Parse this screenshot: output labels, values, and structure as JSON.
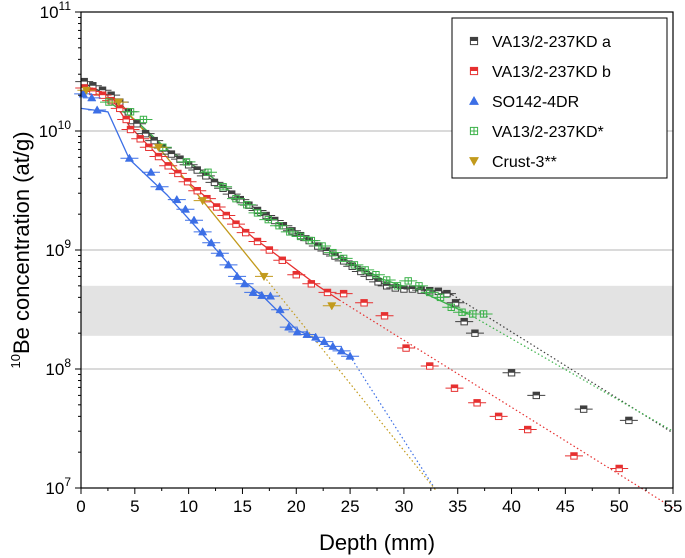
{
  "chart_data": {
    "type": "scatter",
    "xlabel": "Depth (mm)",
    "ylabel_sup": "10",
    "ylabel_rest": "Be concentration (at/g)",
    "xlim": [
      0,
      55
    ],
    "ylim_log10": [
      7,
      11
    ],
    "y_scale": "log",
    "x_ticks": [
      0,
      5,
      10,
      15,
      20,
      25,
      30,
      35,
      40,
      45,
      50,
      55
    ],
    "y_tick_labels": [
      {
        "base": "10",
        "exp": "11"
      },
      {
        "base": "10",
        "exp": "10"
      },
      {
        "base": "10",
        "exp": "9"
      },
      {
        "base": "10",
        "exp": "8"
      },
      {
        "base": "10",
        "exp": "7"
      }
    ],
    "gridlines": [
      10000000000.0,
      1000000000.0,
      100000000.0
    ],
    "shaded_band": [
      190000000.0,
      500000000.0
    ],
    "legend_position": "top-right",
    "series": [
      {
        "name": "VA13/2-237KD a",
        "marker": "half-square",
        "color": "#404040",
        "points": [
          [
            0.3,
            26000000000.0
          ],
          [
            1.1,
            24000000000.0
          ],
          [
            2.0,
            22000000000.0
          ],
          [
            2.8,
            20000000000.0
          ],
          [
            3.6,
            17500000000.0
          ],
          [
            4.4,
            14500000000.0
          ],
          [
            5.2,
            11500000000.0
          ],
          [
            6.0,
            9500000000.0
          ],
          [
            6.8,
            8300000000.0
          ],
          [
            7.6,
            7200000000.0
          ],
          [
            8.4,
            6400000000.0
          ],
          [
            9.2,
            5800000000.0
          ],
          [
            10.0,
            5200000000.0
          ],
          [
            10.8,
            4700000000.0
          ],
          [
            11.6,
            4200000000.0
          ],
          [
            12.4,
            3700000000.0
          ],
          [
            13.2,
            3300000000.0
          ],
          [
            14.0,
            2950000000.0
          ],
          [
            14.8,
            2650000000.0
          ],
          [
            15.6,
            2380000000.0
          ],
          [
            16.4,
            2150000000.0
          ],
          [
            17.2,
            1950000000.0
          ],
          [
            18.0,
            1770000000.0
          ],
          [
            18.8,
            1600000000.0
          ],
          [
            19.6,
            1450000000.0
          ],
          [
            20.4,
            1320000000.0
          ],
          [
            21.2,
            1200000000.0
          ],
          [
            22.0,
            1080000000.0
          ],
          [
            22.8,
            980000000.0
          ],
          [
            23.6,
            890000000.0
          ],
          [
            24.4,
            810000000.0
          ],
          [
            25.2,
            730000000.0
          ],
          [
            26.0,
            660000000.0
          ],
          [
            26.8,
            600000000.0
          ],
          [
            27.6,
            540000000.0
          ],
          [
            28.4,
            500000000.0
          ],
          [
            29.2,
            480000000.0
          ],
          [
            30.0,
            470000000.0
          ],
          [
            30.8,
            470000000.0
          ],
          [
            31.6,
            460000000.0
          ],
          [
            32.4,
            455000000.0
          ],
          [
            33.2,
            450000000.0
          ],
          [
            34.0,
            430000000.0
          ],
          [
            34.8,
            360000000.0
          ],
          [
            35.6,
            250000000.0
          ],
          [
            36.6,
            200000000.0
          ],
          [
            40.0,
            93000000.0
          ],
          [
            42.3,
            60000000.0
          ],
          [
            46.7,
            46000000.0
          ],
          [
            50.9,
            37000000.0
          ]
        ],
        "fit": [
          [
            0,
            26000000000.0
          ],
          [
            3.5,
            18000000000.0
          ],
          [
            5,
            12000000000.0
          ],
          [
            8,
            6800000000.0
          ],
          [
            12,
            4000000000.0
          ],
          [
            16,
            2300000000.0
          ],
          [
            20,
            1380000000.0
          ],
          [
            24,
            860000000.0
          ],
          [
            28,
            520000000.0
          ],
          [
            33,
            450000000.0
          ],
          [
            34.5,
            420000000.0
          ]
        ],
        "extrapolation": [
          [
            34.5,
            420000000.0
          ],
          [
            55,
            29000000.0
          ]
        ]
      },
      {
        "name": "VA13/2-237KD b",
        "marker": "half-square",
        "color": "#e63030",
        "points": [
          [
            0.3,
            23000000000.0
          ],
          [
            1.1,
            21500000000.0
          ],
          [
            2.0,
            20000000000.0
          ],
          [
            2.8,
            18000000000.0
          ],
          [
            3.6,
            15500000000.0
          ],
          [
            4.2,
            12500000000.0
          ],
          [
            4.6,
            10300000000.0
          ],
          [
            5.5,
            8600000000.0
          ],
          [
            6.3,
            7300000000.0
          ],
          [
            7.2,
            6100000000.0
          ],
          [
            8.1,
            5100000000.0
          ],
          [
            9.0,
            4400000000.0
          ],
          [
            9.9,
            3750000000.0
          ],
          [
            10.8,
            3150000000.0
          ],
          [
            11.7,
            2700000000.0
          ],
          [
            12.6,
            2300000000.0
          ],
          [
            13.5,
            1950000000.0
          ],
          [
            14.4,
            1650000000.0
          ],
          [
            15.3,
            1400000000.0
          ],
          [
            16.4,
            1180000000.0
          ],
          [
            17.5,
            1000000000.0
          ],
          [
            18.7,
            820000000.0
          ],
          [
            20.0,
            620000000.0
          ],
          [
            21.4,
            520000000.0
          ],
          [
            22.9,
            440000000.0
          ],
          [
            24.4,
            430000000.0
          ],
          [
            26.3,
            360000000.0
          ],
          [
            28.2,
            280000000.0
          ],
          [
            30.2,
            150000000.0
          ],
          [
            32.4,
            106000000.0
          ],
          [
            34.7,
            69000000.0
          ],
          [
            36.8,
            52000000.0
          ],
          [
            38.8,
            40000000.0
          ],
          [
            41.5,
            31000000.0
          ],
          [
            45.8,
            18600000.0
          ],
          [
            50.0,
            14600000.0
          ]
        ],
        "fit": [
          [
            0,
            23000000000.0
          ],
          [
            3,
            18000000000.0
          ],
          [
            4.5,
            11000000000.0
          ],
          [
            8,
            5200000000.0
          ],
          [
            12,
            2600000000.0
          ],
          [
            16,
            1270000000.0
          ],
          [
            19,
            800000000.0
          ],
          [
            22,
            500000000.0
          ],
          [
            24,
            380000000.0
          ]
        ],
        "extrapolation": [
          [
            24,
            380000000.0
          ],
          [
            55,
            6800000.0
          ]
        ]
      },
      {
        "name": "SO142-4DR",
        "marker": "triangle-up",
        "color": "#3c6fe6",
        "points": [
          [
            0.2,
            20500000000.0
          ],
          [
            1.0,
            19000000000.0
          ],
          [
            1.5,
            15000000000.0
          ],
          [
            4.5,
            5900000000.0
          ],
          [
            6.5,
            4500000000.0
          ],
          [
            7.3,
            3400000000.0
          ],
          [
            8.9,
            2650000000.0
          ],
          [
            9.7,
            2200000000.0
          ],
          [
            10.5,
            1780000000.0
          ],
          [
            11.3,
            1420000000.0
          ],
          [
            12.1,
            1150000000.0
          ],
          [
            12.9,
            940000000.0
          ],
          [
            13.7,
            750000000.0
          ],
          [
            14.5,
            600000000.0
          ],
          [
            15.2,
            520000000.0
          ],
          [
            16.0,
            440000000.0
          ],
          [
            16.8,
            415000000.0
          ],
          [
            17.6,
            410000000.0
          ],
          [
            18.5,
            315000000.0
          ],
          [
            19.3,
            225000000.0
          ],
          [
            20.1,
            205000000.0
          ],
          [
            21.0,
            195000000.0
          ],
          [
            21.8,
            185000000.0
          ],
          [
            22.6,
            170000000.0
          ],
          [
            23.4,
            155000000.0
          ],
          [
            24.2,
            142000000.0
          ],
          [
            25.0,
            128000000.0
          ]
        ],
        "fit": [
          [
            0,
            15500000000.0
          ],
          [
            2.5,
            14500000000.0
          ],
          [
            4.5,
            5800000000.0
          ],
          [
            8,
            2900000000.0
          ],
          [
            12,
            1150000000.0
          ],
          [
            15,
            560000000.0
          ],
          [
            17,
            400000000.0
          ],
          [
            20,
            215000000.0
          ],
          [
            25,
            128000000.0
          ]
        ],
        "extrapolation": [
          [
            25,
            128000000.0
          ],
          [
            33,
            9500000.0
          ]
        ]
      },
      {
        "name": "VA13/2-237KD*",
        "marker": "crossed-square",
        "color": "#3cb24a",
        "points": [
          [
            2.6,
            17500000000.0
          ],
          [
            4.6,
            14500000000.0
          ],
          [
            5.8,
            12500000000.0
          ],
          [
            7.6,
            7300000000.0
          ],
          [
            9.8,
            5500000000.0
          ],
          [
            11.8,
            4500000000.0
          ],
          [
            13.2,
            3400000000.0
          ],
          [
            14.4,
            2700000000.0
          ],
          [
            15.4,
            2400000000.0
          ],
          [
            16.4,
            2050000000.0
          ],
          [
            17.4,
            1800000000.0
          ],
          [
            18.4,
            1600000000.0
          ],
          [
            19.4,
            1420000000.0
          ],
          [
            20.4,
            1300000000.0
          ],
          [
            21.4,
            1200000000.0
          ],
          [
            22.4,
            1080000000.0
          ],
          [
            23.4,
            950000000.0
          ],
          [
            24.4,
            850000000.0
          ],
          [
            25.4,
            750000000.0
          ],
          [
            26.4,
            680000000.0
          ],
          [
            27.4,
            620000000.0
          ],
          [
            28.4,
            560000000.0
          ],
          [
            29.4,
            500000000.0
          ],
          [
            30.4,
            550000000.0
          ],
          [
            31.4,
            500000000.0
          ],
          [
            32.4,
            440000000.0
          ],
          [
            33.4,
            400000000.0
          ],
          [
            34.4,
            330000000.0
          ],
          [
            35.4,
            300000000.0
          ],
          [
            36.4,
            290000000.0
          ],
          [
            37.4,
            290000000.0
          ]
        ],
        "fit": [
          [
            2.6,
            17500000000.0
          ],
          [
            5,
            12500000000.0
          ],
          [
            8,
            7000000000.0
          ],
          [
            12,
            4200000000.0
          ],
          [
            16,
            2200000000.0
          ],
          [
            20,
            1350000000.0
          ],
          [
            24,
            880000000.0
          ],
          [
            28,
            570000000.0
          ],
          [
            32,
            430000000.0
          ],
          [
            36,
            290000000.0
          ]
        ],
        "extrapolation": [
          [
            36,
            290000000.0
          ],
          [
            55,
            30000000.0
          ]
        ]
      },
      {
        "name": "Crust-3**",
        "marker": "triangle-down",
        "color": "#c29a1c",
        "points": [
          [
            0.5,
            22000000000.0
          ],
          [
            3.5,
            17500000000.0
          ],
          [
            7.2,
            7300000000.0
          ],
          [
            11.3,
            2600000000.0
          ],
          [
            17.0,
            600000000.0
          ],
          [
            23.3,
            340000000.0
          ]
        ],
        "fit": [
          [
            0.5,
            22000000000.0
          ],
          [
            3.5,
            17500000000.0
          ],
          [
            7.2,
            7300000000.0
          ],
          [
            11.3,
            2600000000.0
          ],
          [
            17.0,
            600000000.0
          ]
        ],
        "extrapolation": [
          [
            17.0,
            600000000.0
          ],
          [
            33,
            9500000.0
          ]
        ]
      }
    ]
  }
}
